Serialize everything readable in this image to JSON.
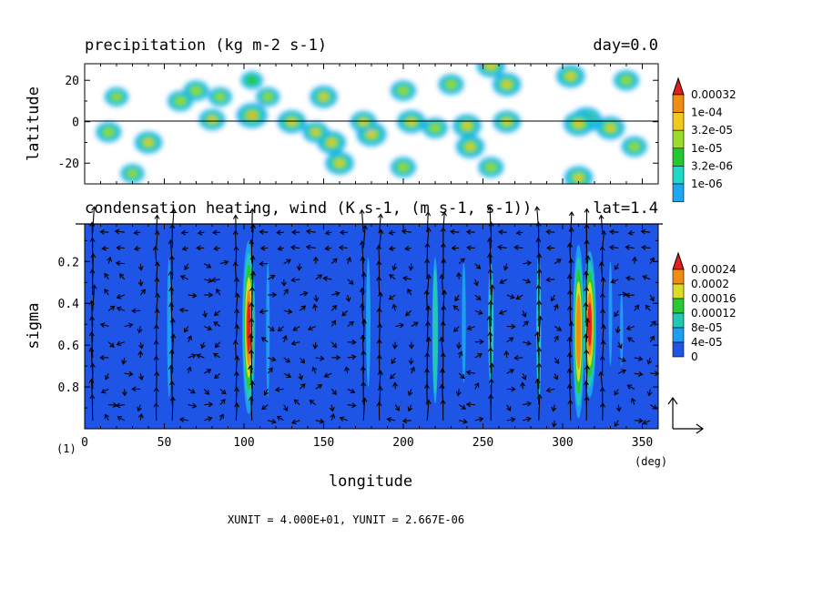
{
  "chart_data": [
    {
      "type": "heatmap",
      "title": "precipitation (kg m-2 s-1)",
      "title_right": "day=0.0",
      "ylabel": "latitude",
      "xlim": [
        0,
        360
      ],
      "ylim": [
        -30,
        28
      ],
      "yticks": [
        "20",
        "0",
        "-20"
      ],
      "ytick_values": [
        20,
        0,
        -20
      ],
      "colorbar_labels": [
        "0.00032",
        "1e-04",
        "3.2e-05",
        "1e-05",
        "3.2e-06",
        "1e-06"
      ],
      "colorbar_levels": [
        1e-06,
        3.2e-06,
        1e-05,
        3.2e-05,
        0.0001,
        0.00032
      ],
      "colors": [
        "#ffffff",
        "#1ea6f0",
        "#20d8c8",
        "#22c832",
        "#9bdc2a",
        "#f0c81e",
        "#f08c14",
        "#e1201e"
      ],
      "zero_line": true,
      "features": [
        {
          "lon": 105,
          "lat": 3,
          "peak": 0.0004
        },
        {
          "lon": 315,
          "lat": 1,
          "peak": 0.00035
        },
        {
          "lon": 310,
          "lat": -1,
          "peak": 0.0003
        },
        {
          "lon": 330,
          "lat": -3,
          "peak": 0.0002
        },
        {
          "lon": 80,
          "lat": 1,
          "peak": 0.0001
        },
        {
          "lon": 130,
          "lat": 0,
          "peak": 0.0002
        },
        {
          "lon": 180,
          "lat": -6,
          "peak": 0.0003
        },
        {
          "lon": 175,
          "lat": 0,
          "peak": 0.0001
        },
        {
          "lon": 205,
          "lat": 0,
          "peak": 0.0002
        },
        {
          "lon": 240,
          "lat": -2,
          "peak": 0.0002
        },
        {
          "lon": 242,
          "lat": -12,
          "peak": 0.0002
        },
        {
          "lon": 265,
          "lat": 0,
          "peak": 0.00015
        },
        {
          "lon": 15,
          "lat": -5,
          "peak": 8e-05
        },
        {
          "lon": 40,
          "lat": -10,
          "peak": 0.00015
        },
        {
          "lon": 155,
          "lat": -10,
          "peak": 0.0002
        },
        {
          "lon": 160,
          "lat": -20,
          "peak": 0.0002
        },
        {
          "lon": 115,
          "lat": 12,
          "peak": 5e-05
        },
        {
          "lon": 145,
          "lat": -5,
          "peak": 0.0001
        },
        {
          "lon": 220,
          "lat": -3,
          "peak": 8e-05
        },
        {
          "lon": 70,
          "lat": 15,
          "peak": 8e-05
        },
        {
          "lon": 85,
          "lat": 12,
          "peak": 5e-05
        },
        {
          "lon": 105,
          "lat": 20,
          "peak": 3e-05
        },
        {
          "lon": 150,
          "lat": 12,
          "peak": 0.00015
        },
        {
          "lon": 200,
          "lat": 15,
          "peak": 8e-05
        },
        {
          "lon": 230,
          "lat": 18,
          "peak": 8e-05
        },
        {
          "lon": 265,
          "lat": 18,
          "peak": 0.0002
        },
        {
          "lon": 305,
          "lat": 22,
          "peak": 0.0002
        },
        {
          "lon": 340,
          "lat": 20,
          "peak": 8e-05
        },
        {
          "lon": 255,
          "lat": 27,
          "peak": 0.0002
        },
        {
          "lon": 310,
          "lat": -27,
          "peak": 0.0002
        },
        {
          "lon": 255,
          "lat": -22,
          "peak": 8e-05
        },
        {
          "lon": 200,
          "lat": -22,
          "peak": 8e-05
        },
        {
          "lon": 30,
          "lat": -25,
          "peak": 5e-05
        },
        {
          "lon": 345,
          "lat": -12,
          "peak": 8e-05
        },
        {
          "lon": 60,
          "lat": 10,
          "peak": 8e-05
        },
        {
          "lon": 20,
          "lat": 12,
          "peak": 5e-05
        }
      ]
    },
    {
      "type": "heatmap",
      "title": "condensation heating, wind (K s-1, (m s-1, s-1))",
      "title_right": "lat=1.4",
      "xlabel": "longitude",
      "ylabel": "sigma",
      "xlim": [
        0,
        360
      ],
      "ylim": [
        0.02,
        1.0
      ],
      "y_inverted": true,
      "xticks": [
        "0",
        "50",
        "100",
        "150",
        "200",
        "250",
        "300",
        "350"
      ],
      "xtick_values": [
        0,
        50,
        100,
        150,
        200,
        250,
        300,
        350
      ],
      "yticks": [
        "0.2",
        "0.4",
        "0.6",
        "0.8"
      ],
      "ytick_values": [
        0.2,
        0.4,
        0.6,
        0.8
      ],
      "x_unit": "(deg)",
      "y_unit": "(1)",
      "colorbar_labels": [
        "0.00024",
        "0.0002",
        "0.00016",
        "0.00012",
        "8e-05",
        "4e-05",
        "0"
      ],
      "colorbar_levels": [
        0,
        4e-05,
        8e-05,
        0.00012,
        0.00016,
        0.0002,
        0.00024
      ],
      "colors": [
        "#1f55e6",
        "#1e9ef0",
        "#22c8b4",
        "#2ac832",
        "#dcdc28",
        "#f08c14",
        "#e61e1e"
      ],
      "columns": [
        {
          "lon": 53,
          "sigma_top": 0.18,
          "sigma_bot": 0.85,
          "peak": 6e-05
        },
        {
          "lon": 103,
          "sigma_top": 0.1,
          "sigma_bot": 0.93,
          "peak": 0.00026
        },
        {
          "lon": 115,
          "sigma_top": 0.2,
          "sigma_bot": 0.85,
          "peak": 5e-05
        },
        {
          "lon": 178,
          "sigma_top": 0.18,
          "sigma_bot": 0.8,
          "peak": 7e-05
        },
        {
          "lon": 220,
          "sigma_top": 0.18,
          "sigma_bot": 0.88,
          "peak": 0.0001
        },
        {
          "lon": 238,
          "sigma_top": 0.2,
          "sigma_bot": 0.78,
          "peak": 6e-05
        },
        {
          "lon": 255,
          "sigma_top": 0.2,
          "sigma_bot": 0.8,
          "peak": 0.0001
        },
        {
          "lon": 285,
          "sigma_top": 0.15,
          "sigma_bot": 0.9,
          "peak": 8e-05
        },
        {
          "lon": 310,
          "sigma_top": 0.12,
          "sigma_bot": 0.95,
          "peak": 0.00022
        },
        {
          "lon": 317,
          "sigma_top": 0.15,
          "sigma_bot": 0.85,
          "peak": 0.00026
        },
        {
          "lon": 330,
          "sigma_top": 0.2,
          "sigma_bot": 0.7,
          "peak": 5e-05
        },
        {
          "lon": 337,
          "sigma_top": 0.35,
          "sigma_bot": 0.7,
          "peak": 4e-05
        }
      ],
      "wind_vectors": "field of arrows (u, w) over the longitude–sigma section",
      "reference_vector": {
        "x_unit": "4.000E+01",
        "y_unit": "2.667E-06"
      }
    }
  ],
  "footer": {
    "units_text": "XUNIT = 4.000E+01, YUNIT = 2.667E-06"
  }
}
